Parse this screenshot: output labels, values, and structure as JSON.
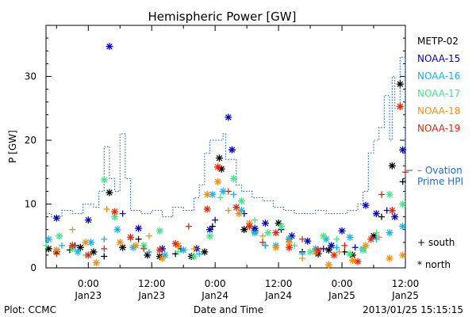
{
  "chart_data": {
    "type": "scatter",
    "title": "Hemispheric Power [GW]",
    "ylabel": "P [GW]",
    "xlabel": "Date and Time",
    "ylim": [
      0,
      38
    ],
    "yticks": [
      0,
      10,
      20,
      30
    ],
    "xlim": [
      -8,
      60
    ],
    "xticks": [
      {
        "x": 0,
        "time": "0:00",
        "date": "Jan23"
      },
      {
        "x": 12,
        "time": "12:00",
        "date": "Jan23"
      },
      {
        "x": 24,
        "time": "0:00",
        "date": "Jan24"
      },
      {
        "x": 36,
        "time": "12:00",
        "date": "Jan24"
      },
      {
        "x": 48,
        "time": "0:00",
        "date": "Jan25"
      },
      {
        "x": 60,
        "time": "12:00",
        "date": "Jan25"
      }
    ],
    "series": [
      {
        "name": "METP-02",
        "color": "#000000",
        "seed": 11,
        "values": [
          [
            -8.8,
            9.5
          ],
          [
            -7.5,
            3.0
          ],
          [
            -6.0,
            2.5
          ],
          [
            -3.5,
            2.8
          ],
          [
            -1.5,
            3.2
          ],
          [
            1.0,
            2.5
          ],
          [
            3.0,
            1.8
          ],
          [
            4.0,
            11.8
          ],
          [
            6.5,
            3.2
          ],
          [
            9.5,
            4.5
          ],
          [
            11.2,
            2.0
          ],
          [
            13.5,
            1.8
          ],
          [
            16.5,
            2.2
          ],
          [
            19.5,
            1.8
          ],
          [
            22.0,
            2.5
          ],
          [
            23.5,
            6.5
          ],
          [
            24.8,
            17.2
          ],
          [
            25.2,
            15.5
          ],
          [
            27.2,
            18.5
          ],
          [
            29.5,
            6.0
          ],
          [
            31.5,
            5.8
          ],
          [
            33.5,
            3.5
          ],
          [
            36.0,
            7.0
          ],
          [
            38.0,
            4.5
          ],
          [
            40.5,
            2.5
          ],
          [
            43.5,
            2.2
          ],
          [
            45.5,
            2.8
          ],
          [
            48.5,
            2.5
          ],
          [
            50.0,
            2.0
          ],
          [
            54.0,
            5.0
          ],
          [
            55.5,
            8.0
          ],
          [
            57.5,
            16.0
          ],
          [
            59.0,
            28.8
          ],
          [
            59.5,
            13.5
          ],
          [
            60.2,
            14.0
          ],
          [
            61.2,
            6.8
          ]
        ]
      },
      {
        "name": "NOAA-15",
        "color": "#0000cc",
        "seed": 23,
        "values": [
          [
            -8.2,
            4.0
          ],
          [
            -6.0,
            7.8
          ],
          [
            -2.5,
            3.5
          ],
          [
            0.0,
            7.5
          ],
          [
            4.0,
            34.7
          ],
          [
            6.5,
            8.5
          ],
          [
            9.5,
            6.2
          ],
          [
            14.0,
            3.0
          ],
          [
            17.5,
            3.0
          ],
          [
            20.5,
            3.0
          ],
          [
            23.0,
            6.0
          ],
          [
            24.0,
            7.5
          ],
          [
            26.5,
            23.6
          ],
          [
            27.2,
            18.5
          ],
          [
            29.5,
            8.5
          ],
          [
            31.5,
            6.2
          ],
          [
            33.5,
            7.0
          ],
          [
            36.5,
            6.0
          ],
          [
            38.5,
            5.0
          ],
          [
            41.5,
            4.2
          ],
          [
            44.5,
            3.0
          ],
          [
            46.0,
            3.5
          ],
          [
            48.0,
            5.8
          ],
          [
            50.5,
            3.2
          ],
          [
            52.5,
            9.8
          ],
          [
            54.5,
            8.5
          ],
          [
            56.5,
            9.0
          ],
          [
            58.0,
            8.0
          ],
          [
            59.5,
            18.5
          ],
          [
            61.0,
            20.8
          ]
        ]
      },
      {
        "name": "NOAA-16",
        "color": "#00b8ff",
        "seed": 37,
        "values": [
          [
            -7.5,
            4.5
          ],
          [
            -5.0,
            3.5
          ],
          [
            -2.0,
            2.5
          ],
          [
            0.5,
            4.0
          ],
          [
            3.0,
            4.5
          ],
          [
            5.5,
            6.0
          ],
          [
            8.5,
            3.2
          ],
          [
            11.5,
            2.5
          ],
          [
            14.5,
            2.0
          ],
          [
            18.0,
            2.8
          ],
          [
            21.0,
            2.2
          ],
          [
            23.5,
            11.5
          ],
          [
            25.5,
            12.0
          ],
          [
            27.5,
            11.5
          ],
          [
            29.0,
            9.0
          ],
          [
            31.5,
            5.5
          ],
          [
            33.5,
            3.5
          ],
          [
            35.5,
            3.5
          ],
          [
            38.0,
            4.5
          ],
          [
            40.5,
            2.2
          ],
          [
            43.0,
            3.0
          ],
          [
            45.0,
            4.5
          ],
          [
            47.0,
            3.2
          ],
          [
            49.5,
            4.8
          ],
          [
            52.0,
            3.0
          ],
          [
            54.5,
            4.5
          ],
          [
            57.0,
            5.5
          ],
          [
            59.5,
            6.5
          ],
          [
            60.5,
            5.5
          ]
        ]
      },
      {
        "name": "NOAA-17",
        "color": "#30f080",
        "seed": 41,
        "values": [
          [
            -8.0,
            3.5
          ],
          [
            -5.5,
            5.0
          ],
          [
            -3.0,
            3.0
          ],
          [
            -0.5,
            2.0
          ],
          [
            3.0,
            13.8
          ],
          [
            5.0,
            8.0
          ],
          [
            8.0,
            4.5
          ],
          [
            10.5,
            3.5
          ],
          [
            13.5,
            5.8
          ],
          [
            17.0,
            2.5
          ],
          [
            20.0,
            1.8
          ],
          [
            23.0,
            5.0
          ],
          [
            25.0,
            11.0
          ],
          [
            27.5,
            14.0
          ],
          [
            29.0,
            10.5
          ],
          [
            31.5,
            7.5
          ],
          [
            34.0,
            5.5
          ],
          [
            36.5,
            6.5
          ],
          [
            39.0,
            3.5
          ],
          [
            42.0,
            2.5
          ],
          [
            44.5,
            5.0
          ],
          [
            47.0,
            4.5
          ],
          [
            49.5,
            2.2
          ],
          [
            52.0,
            2.8
          ],
          [
            54.5,
            5.5
          ],
          [
            57.0,
            11.5
          ],
          [
            59.5,
            10.0
          ],
          [
            60.5,
            15.5
          ]
        ]
      },
      {
        "name": "NOAA-18",
        "color": "#ff8c00",
        "seed": 53,
        "values": [
          [
            -8.5,
            1.5
          ],
          [
            -6.0,
            2.8
          ],
          [
            -3.0,
            6.0
          ],
          [
            -0.5,
            4.0
          ],
          [
            1.5,
            0.8
          ],
          [
            3.5,
            9.2
          ],
          [
            6.0,
            4.0
          ],
          [
            9.0,
            3.5
          ],
          [
            11.5,
            5.0
          ],
          [
            14.0,
            1.5
          ],
          [
            17.0,
            3.5
          ],
          [
            20.0,
            3.0
          ],
          [
            22.5,
            11.5
          ],
          [
            24.5,
            13.5
          ],
          [
            26.5,
            9.0
          ],
          [
            28.5,
            8.5
          ],
          [
            30.5,
            7.0
          ],
          [
            33.0,
            5.0
          ],
          [
            35.5,
            3.2
          ],
          [
            38.0,
            4.0
          ],
          [
            40.5,
            1.5
          ],
          [
            43.0,
            2.5
          ],
          [
            45.5,
            0.5
          ],
          [
            47.5,
            2.5
          ],
          [
            50.0,
            1.2
          ],
          [
            52.5,
            3.5
          ],
          [
            55.0,
            4.8
          ],
          [
            57.0,
            1.5
          ],
          [
            59.5,
            2.0
          ],
          [
            61.0,
            8.0
          ]
        ]
      },
      {
        "name": "NOAA-19",
        "color": "#ee2200",
        "seed": 67,
        "values": [
          [
            -8.5,
            6.0
          ],
          [
            -6.0,
            2.2
          ],
          [
            -3.0,
            3.5
          ],
          [
            0.0,
            2.0
          ],
          [
            3.0,
            3.0
          ],
          [
            5.0,
            8.8
          ],
          [
            8.0,
            4.8
          ],
          [
            10.5,
            3.0
          ],
          [
            13.5,
            2.8
          ],
          [
            16.5,
            3.8
          ],
          [
            19.0,
            6.5
          ],
          [
            22.5,
            9.2
          ],
          [
            24.5,
            15.8
          ],
          [
            26.5,
            12.0
          ],
          [
            28.0,
            9.5
          ],
          [
            30.5,
            6.5
          ],
          [
            33.0,
            4.0
          ],
          [
            35.5,
            5.5
          ],
          [
            38.0,
            3.2
          ],
          [
            40.5,
            4.5
          ],
          [
            43.5,
            2.8
          ],
          [
            46.5,
            2.0
          ],
          [
            48.5,
            3.5
          ],
          [
            51.0,
            1.0
          ],
          [
            53.5,
            4.5
          ],
          [
            55.5,
            11.5
          ],
          [
            57.5,
            9.0
          ],
          [
            59.0,
            25.3
          ],
          [
            60.0,
            15.0
          ]
        ]
      },
      {
        "name": "Ovation Prime HPI",
        "color": "#1e6ed8",
        "line": [
          [
            -9,
            8.5
          ],
          [
            -7,
            8
          ],
          [
            -5,
            9
          ],
          [
            -3,
            8.5
          ],
          [
            -1,
            10
          ],
          [
            1,
            9.5
          ],
          [
            2,
            12
          ],
          [
            3,
            19
          ],
          [
            4,
            14
          ],
          [
            5,
            12
          ],
          [
            6,
            21
          ],
          [
            7,
            14
          ],
          [
            8,
            9
          ],
          [
            10,
            8.5
          ],
          [
            12,
            9
          ],
          [
            14,
            8
          ],
          [
            16,
            9.5
          ],
          [
            18,
            9
          ],
          [
            20,
            11
          ],
          [
            21,
            13
          ],
          [
            22,
            18
          ],
          [
            23,
            20
          ],
          [
            25,
            20
          ],
          [
            25.5,
            21
          ],
          [
            26,
            17
          ],
          [
            28,
            13
          ],
          [
            29,
            12
          ],
          [
            31,
            11
          ],
          [
            33,
            10.5
          ],
          [
            35,
            9.5
          ],
          [
            37,
            9
          ],
          [
            39,
            8.5
          ],
          [
            41,
            8.5
          ],
          [
            43,
            9
          ],
          [
            45,
            8.5
          ],
          [
            47,
            8.5
          ],
          [
            49,
            9
          ],
          [
            51,
            10
          ],
          [
            52,
            12
          ],
          [
            53,
            18
          ],
          [
            54,
            20
          ],
          [
            55,
            22
          ],
          [
            56,
            27
          ],
          [
            57,
            20
          ],
          [
            57.5,
            30
          ],
          [
            58,
            25
          ],
          [
            59,
            33
          ],
          [
            60,
            22
          ],
          [
            61,
            21
          ],
          [
            62,
            10
          ]
        ]
      }
    ],
    "marker_legend": [
      {
        "symbol": "+",
        "label": "south"
      },
      {
        "symbol": "*",
        "label": "north"
      }
    ]
  },
  "footer": {
    "left": "Plot: CCMC",
    "center": "Date and Time",
    "right": "2013/01/25 15:15:15"
  }
}
